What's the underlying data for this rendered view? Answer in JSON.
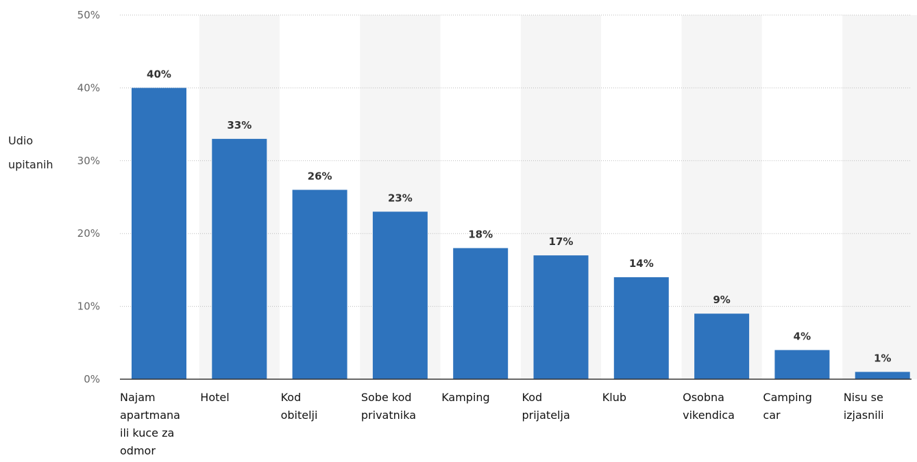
{
  "chart_data": {
    "type": "bar",
    "title": "",
    "ylabel": [
      "Udio",
      "upitanih"
    ],
    "xlabel": "",
    "ylim": [
      0,
      50
    ],
    "yticks": [
      {
        "value": 0,
        "label": "0%"
      },
      {
        "value": 10,
        "label": "10%"
      },
      {
        "value": 20,
        "label": "20%"
      },
      {
        "value": 30,
        "label": "30%"
      },
      {
        "value": 40,
        "label": "40%"
      },
      {
        "value": 50,
        "label": "50%"
      }
    ],
    "grid": true,
    "categories": [
      [
        "Najam",
        "apartmana",
        "ili kuce za",
        "odmor"
      ],
      [
        "Hotel"
      ],
      [
        "Kod",
        "obitelji"
      ],
      [
        "Sobe kod",
        "privatnika"
      ],
      [
        "Kamping"
      ],
      [
        "Kod",
        "prijatelja"
      ],
      [
        "Klub"
      ],
      [
        "Osobna",
        "vikendica"
      ],
      [
        "Camping",
        "car"
      ],
      [
        "Nisu se",
        "izjasnili"
      ]
    ],
    "values": [
      40,
      33,
      26,
      23,
      18,
      17,
      14,
      9,
      4,
      1
    ],
    "value_labels": [
      "40%",
      "33%",
      "26%",
      "23%",
      "18%",
      "17%",
      "14%",
      "9%",
      "4%",
      "1%"
    ],
    "colors": {
      "bar": "#2e73bd",
      "band": "#f5f5f5",
      "grid": "#bbbbbb",
      "axis": "#333333"
    }
  }
}
